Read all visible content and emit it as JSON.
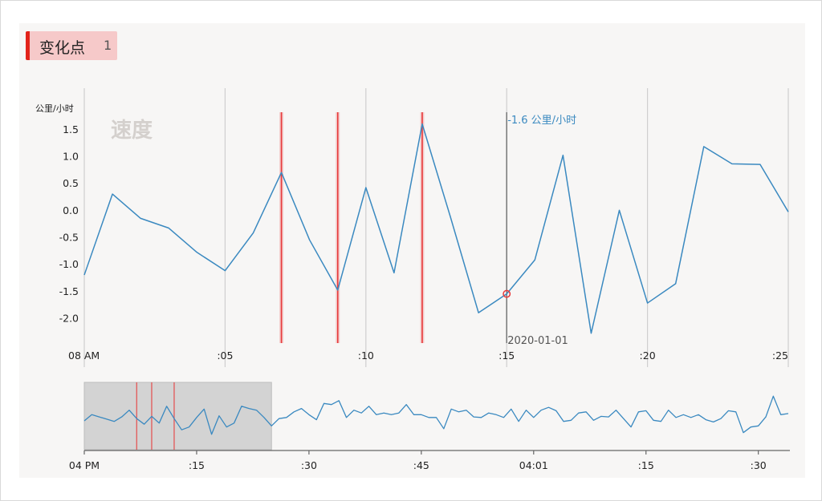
{
  "header": {
    "title": "变化点",
    "count": "1"
  },
  "colors": {
    "line": "#3a89c0",
    "changepoint": "#e8393a",
    "grid": "#cfcfcf",
    "cursor": "#777777",
    "brush": "#d3d3d3"
  },
  "chart_data": [
    {
      "type": "line",
      "title": "速度",
      "ylabel": "公里/小时",
      "x_unit": "minute",
      "x_start_label": "08 AM",
      "xlim": [
        0,
        25
      ],
      "ylim": [
        -2.5,
        1.8
      ],
      "y_ticks": [
        1.5,
        1.0,
        0.5,
        0.0,
        -0.5,
        -1.0,
        -1.5,
        -2.0
      ],
      "y_tick_labels": [
        "1.5",
        "1.0",
        "0.5",
        "0.0",
        "-0.5",
        "-1.0",
        "-1.5",
        "-2.0"
      ],
      "x_ticks": [
        0,
        5,
        10,
        15,
        20,
        25
      ],
      "x_tick_labels": [
        "08 AM",
        ":05",
        ":10",
        ":15",
        ":20",
        ":25"
      ],
      "grid": "vertical",
      "series": [
        {
          "x": [
            0,
            1,
            2,
            3,
            4,
            5,
            6,
            7,
            8,
            9,
            10,
            11,
            12,
            13,
            14,
            15,
            16,
            17,
            18,
            19,
            20,
            21,
            22,
            23,
            24,
            25
          ],
          "values": [
            -1.2,
            0.3,
            -0.15,
            -0.33,
            -0.78,
            -1.12,
            -0.42,
            0.7,
            -0.55,
            -1.48,
            0.42,
            -1.16,
            1.6,
            -0.12,
            -1.9,
            -1.55,
            -0.92,
            1.02,
            -2.28,
            0.0,
            -1.72,
            -1.36,
            1.18,
            0.86,
            0.85,
            -0.03
          ]
        }
      ],
      "changepoints_x": [
        7,
        9,
        12
      ],
      "cursor": {
        "x": 15,
        "value_text": "-1.6 公里/小时",
        "date_text": "2020-01-01"
      }
    },
    {
      "type": "line",
      "role": "overview",
      "x_tick_labels": [
        "04 PM",
        ":15",
        ":30",
        ":45",
        "04:01",
        ":15",
        ":30"
      ],
      "x_ticks_index": [
        0,
        15,
        30,
        45,
        60,
        75,
        90
      ],
      "brush_range_index": [
        0,
        25
      ],
      "changepoints_index": [
        7,
        9,
        12
      ],
      "values": [
        0.0,
        0.22,
        0.14,
        0.06,
        -0.02,
        0.14,
        0.38,
        0.08,
        -0.12,
        0.16,
        -0.08,
        0.52,
        0.08,
        -0.32,
        -0.22,
        0.12,
        0.42,
        -0.48,
        0.18,
        -0.22,
        -0.08,
        0.52,
        0.44,
        0.38,
        0.12,
        -0.18,
        0.08,
        0.12,
        0.32,
        0.44,
        0.22,
        0.04,
        0.62,
        0.58,
        0.72,
        0.12,
        0.38,
        0.28,
        0.52,
        0.22,
        0.28,
        0.22,
        0.28,
        0.58,
        0.22,
        0.22,
        0.12,
        0.12,
        -0.28,
        0.42,
        0.32,
        0.38,
        0.14,
        0.12,
        0.28,
        0.22,
        0.12,
        0.42,
        -0.02,
        0.38,
        0.12,
        0.38,
        0.48,
        0.36,
        -0.02,
        0.02,
        0.28,
        0.32,
        0.02,
        0.16,
        0.14,
        0.38,
        0.08,
        -0.22,
        0.32,
        0.36,
        0.02,
        -0.02,
        0.38,
        0.12,
        0.22,
        0.12,
        0.22,
        0.04,
        -0.04,
        0.08,
        0.36,
        0.32,
        -0.42,
        -0.22,
        -0.18,
        0.14,
        0.88,
        0.22,
        0.26
      ]
    }
  ]
}
